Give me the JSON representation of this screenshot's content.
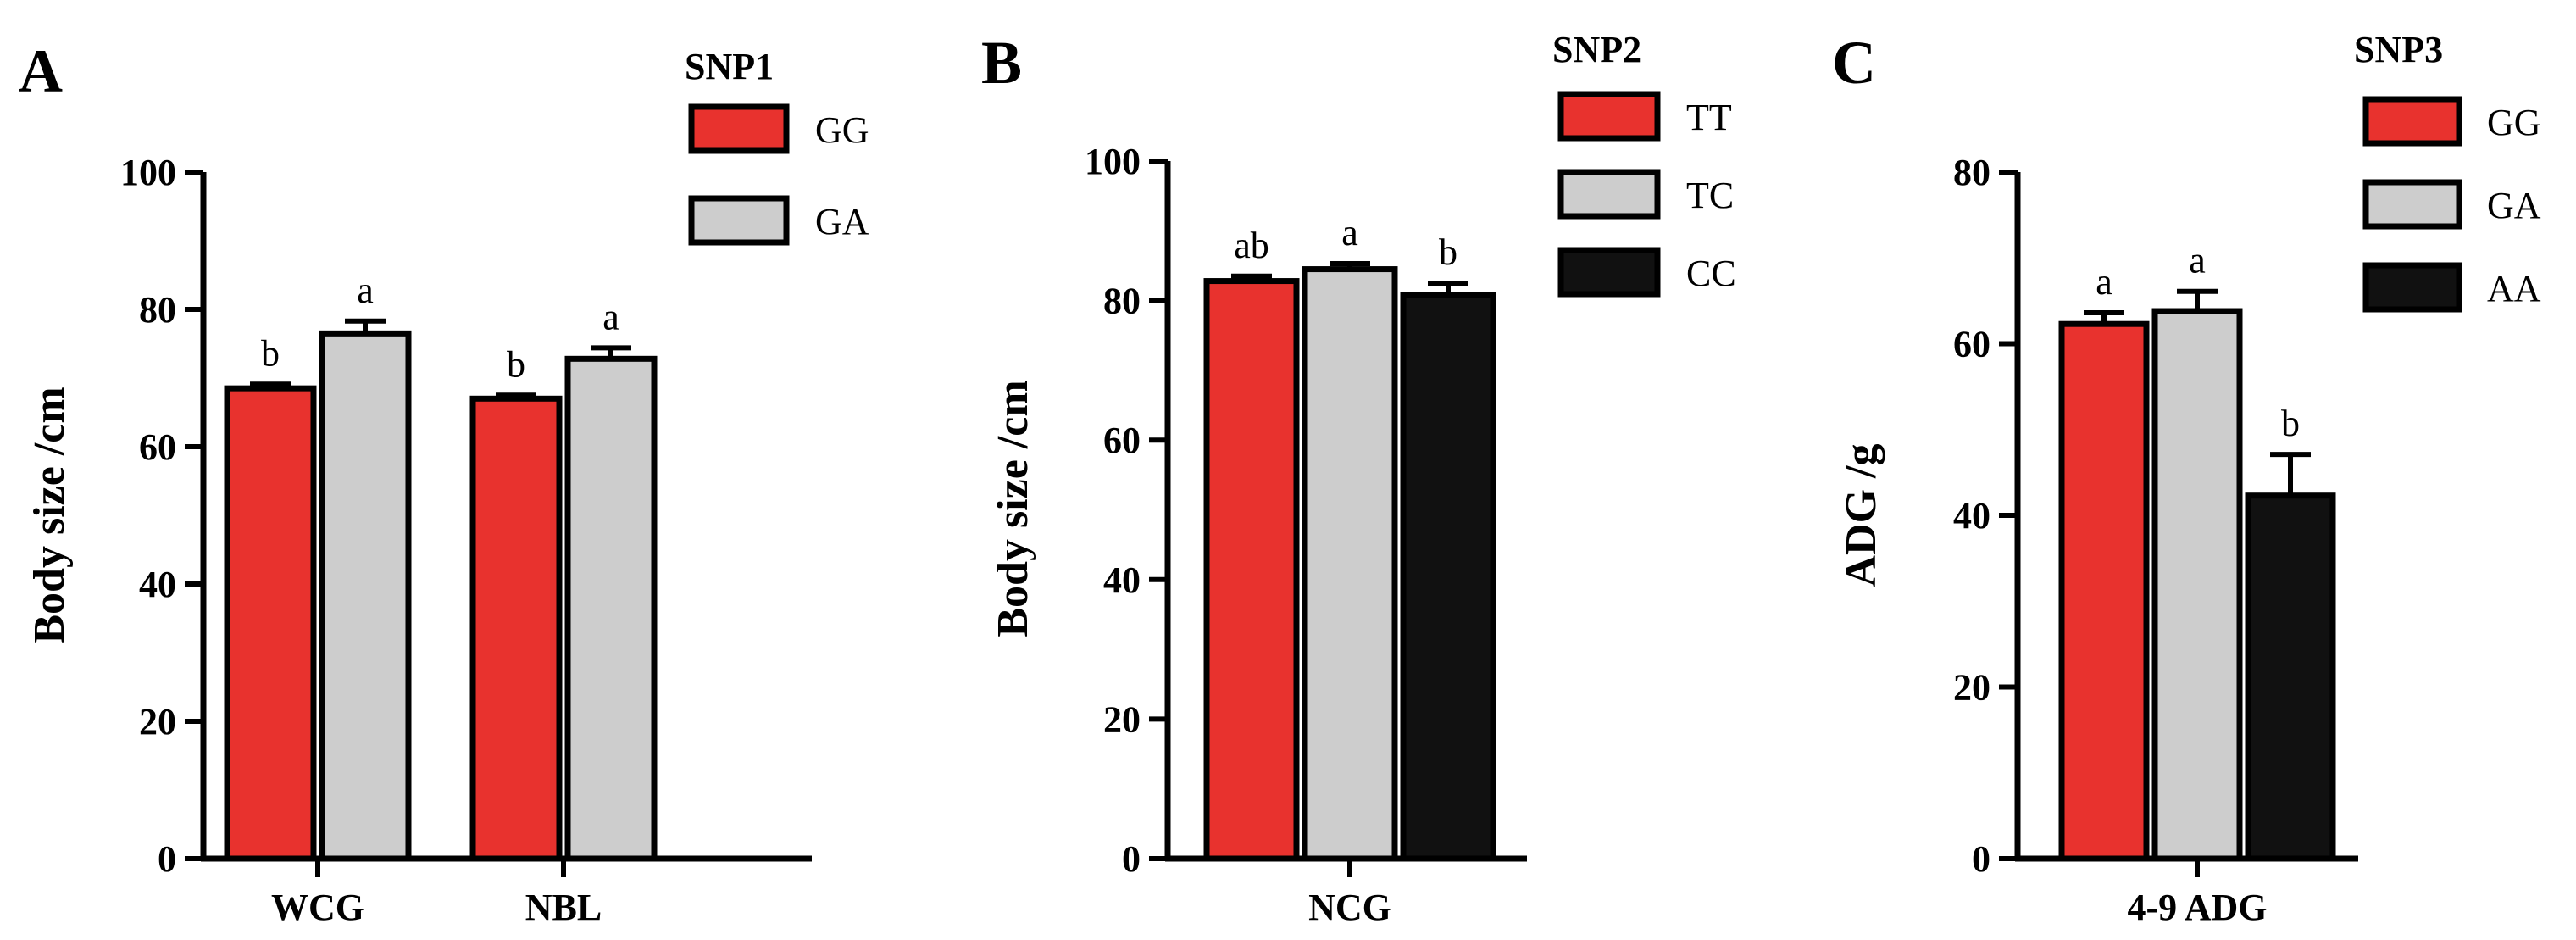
{
  "chart_data": [
    {
      "type": "bar",
      "panel": "A",
      "title": "",
      "legend_title": "SNP1",
      "legend_position": "top-right",
      "categories": [
        "WCG",
        "NBL"
      ],
      "series": [
        {
          "name": "GG",
          "color": "#e8322e",
          "values": [
            68.5,
            67.0
          ],
          "errors": [
            0.6,
            0.5
          ],
          "letters": [
            "b",
            "b"
          ]
        },
        {
          "name": "GA",
          "color": "#cdcdcd",
          "values": [
            76.5,
            72.8
          ],
          "errors": [
            1.8,
            1.6
          ],
          "letters": [
            "a",
            "a"
          ]
        }
      ],
      "xlabel": "",
      "ylabel": "Body size /cm",
      "ylim": [
        0,
        100
      ],
      "yticks": [
        0,
        20,
        40,
        60,
        80,
        100
      ],
      "grid": false
    },
    {
      "type": "bar",
      "panel": "B",
      "title": "",
      "legend_title": "SNP2",
      "legend_position": "top-right",
      "categories": [
        "NCG"
      ],
      "series": [
        {
          "name": "TT",
          "color": "#e8322e",
          "values": [
            82.8
          ],
          "errors": [
            0.7
          ],
          "letters": [
            "ab"
          ]
        },
        {
          "name": "TC",
          "color": "#cdcdcd",
          "values": [
            84.5
          ],
          "errors": [
            0.8
          ],
          "letters": [
            "a"
          ]
        },
        {
          "name": "CC",
          "color": "#111111",
          "values": [
            80.8
          ],
          "errors": [
            1.7
          ],
          "letters": [
            "b"
          ]
        }
      ],
      "xlabel": "",
      "ylabel": "Body size /cm",
      "ylim": [
        0,
        100
      ],
      "yticks": [
        0,
        20,
        40,
        60,
        80,
        100
      ],
      "grid": false
    },
    {
      "type": "bar",
      "panel": "C",
      "title": "",
      "legend_title": "SNP3",
      "legend_position": "top-right",
      "categories": [
        "4-9 ADG"
      ],
      "series": [
        {
          "name": "GG",
          "color": "#e8322e",
          "values": [
            62.3
          ],
          "errors": [
            1.3
          ],
          "letters": [
            "a"
          ]
        },
        {
          "name": "GA",
          "color": "#cdcdcd",
          "values": [
            63.8
          ],
          "errors": [
            2.3
          ],
          "letters": [
            "a"
          ]
        },
        {
          "name": "AA",
          "color": "#111111",
          "values": [
            42.3
          ],
          "errors": [
            4.8
          ],
          "letters": [
            "b"
          ]
        }
      ],
      "xlabel": "",
      "ylabel": "ADG /g",
      "ylim": [
        0,
        80
      ],
      "yticks": [
        0,
        20,
        40,
        60,
        80
      ],
      "grid": false
    }
  ]
}
